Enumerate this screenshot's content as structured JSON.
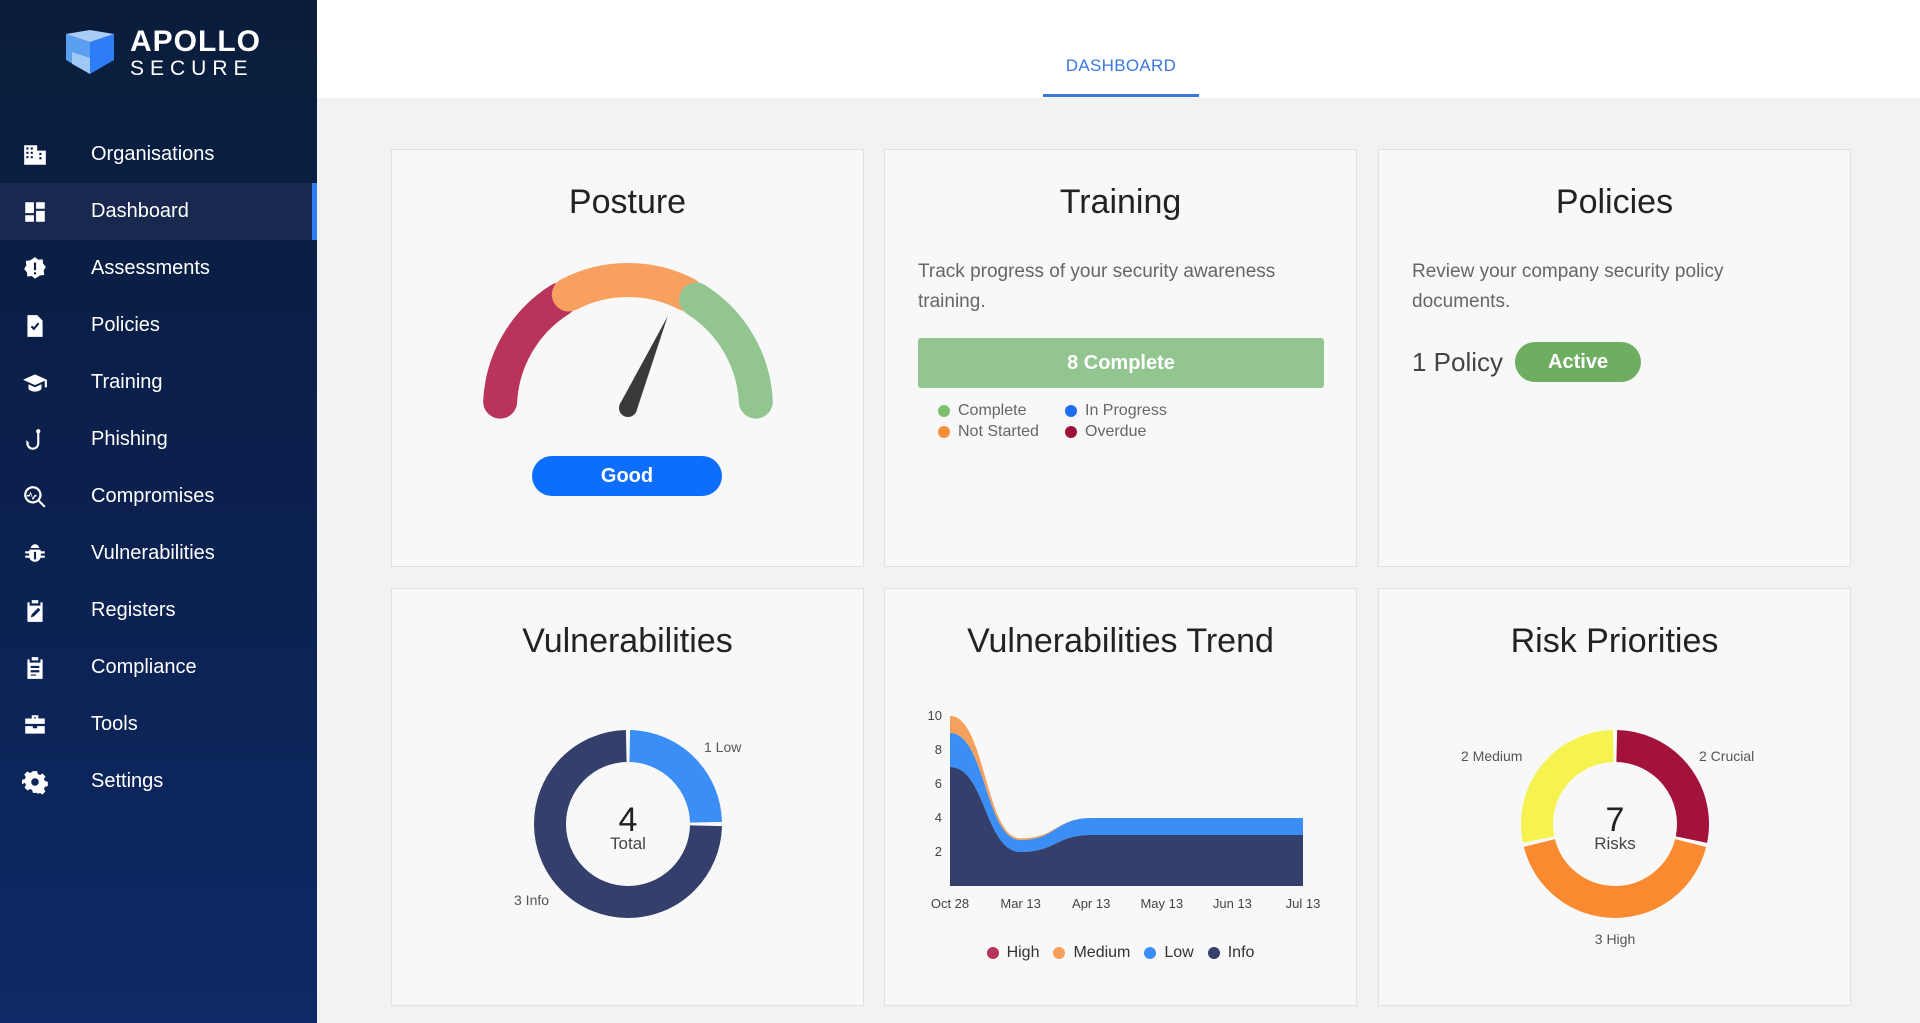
{
  "brand": {
    "line1": "APOLLO",
    "line2": "SECURE"
  },
  "sidebar": {
    "items": [
      {
        "label": "Organisations",
        "icon": "building-icon"
      },
      {
        "label": "Dashboard",
        "icon": "dashboard-icon",
        "active": true
      },
      {
        "label": "Assessments",
        "icon": "alert-badge-icon"
      },
      {
        "label": "Policies",
        "icon": "file-check-icon"
      },
      {
        "label": "Training",
        "icon": "graduation-cap-icon"
      },
      {
        "label": "Phishing",
        "icon": "fish-hook-icon"
      },
      {
        "label": "Compromises",
        "icon": "magnify-pulse-icon"
      },
      {
        "label": "Vulnerabilities",
        "icon": "bug-icon"
      },
      {
        "label": "Registers",
        "icon": "clipboard-edit-icon"
      },
      {
        "label": "Compliance",
        "icon": "clipboard-list-icon"
      },
      {
        "label": "Tools",
        "icon": "toolbox-icon"
      },
      {
        "label": "Settings",
        "icon": "gear-icon"
      }
    ]
  },
  "header": {
    "tab": "DASHBOARD"
  },
  "posture": {
    "title": "Posture",
    "status": "Good"
  },
  "training": {
    "title": "Training",
    "description": "Track progress of your security awareness training.",
    "progress_label": "8 Complete",
    "legend": [
      {
        "label": "Complete",
        "color": "#7cbf6d"
      },
      {
        "label": "In Progress",
        "color": "#1e6ff0"
      },
      {
        "label": "Not Started",
        "color": "#f5903a"
      },
      {
        "label": "Overdue",
        "color": "#9c1238"
      }
    ]
  },
  "policies": {
    "title": "Policies",
    "description": "Review your company security policy documents.",
    "count_label": "1 Policy",
    "status": "Active"
  },
  "vulnerabilities": {
    "title": "Vulnerabilities",
    "total_value": "4",
    "total_label": "Total",
    "low_label": "1 Low",
    "info_label": "3 Info"
  },
  "vuln_trend": {
    "title": "Vulnerabilities Trend"
  },
  "risk": {
    "title": "Risk Priorities",
    "total_value": "7",
    "total_label": "Risks",
    "crucial_label": "2 Crucial",
    "high_label": "3 High",
    "medium_label": "2 Medium"
  },
  "chart_data": [
    {
      "type": "gauge",
      "segments": [
        {
          "name": "poor",
          "color": "#b8345a"
        },
        {
          "name": "fair",
          "color": "#f8a060"
        },
        {
          "name": "good",
          "color": "#93c590"
        }
      ],
      "needle_value": 0.63,
      "label": "Good"
    },
    {
      "type": "pie",
      "title": "Vulnerabilities",
      "categories": [
        "Low",
        "Info"
      ],
      "values": [
        1,
        3
      ],
      "colors": [
        "#3a8ef5",
        "#34406b"
      ]
    },
    {
      "type": "area",
      "title": "Vulnerabilities Trend",
      "x": [
        "Oct 28",
        "Mar 13",
        "Apr 13",
        "May 13",
        "Jun 13",
        "Jul 13"
      ],
      "ylim": [
        0,
        10
      ],
      "yticks": [
        2,
        4,
        6,
        8,
        10
      ],
      "stacked": true,
      "series": [
        {
          "name": "Info",
          "color": "#34406b",
          "values": [
            7,
            2,
            3,
            3,
            3,
            3
          ]
        },
        {
          "name": "Low",
          "color": "#3a8ef5",
          "values": [
            2,
            0.7,
            1,
            1,
            1,
            1
          ]
        },
        {
          "name": "Medium",
          "color": "#f5a05c",
          "values": [
            1,
            0.1,
            0,
            0,
            0,
            0
          ]
        },
        {
          "name": "High",
          "color": "#b8345a",
          "values": [
            0,
            0,
            0,
            0,
            0,
            0
          ]
        }
      ],
      "legend": [
        "High",
        "Medium",
        "Low",
        "Info"
      ],
      "legend_colors": [
        "#b8345a",
        "#f5a05c",
        "#3a8ef5",
        "#34406b"
      ]
    },
    {
      "type": "pie",
      "title": "Risk Priorities",
      "categories": [
        "Crucial",
        "High",
        "Medium"
      ],
      "values": [
        2,
        3,
        2
      ],
      "colors": [
        "#a3123a",
        "#f98a30",
        "#f6f24f"
      ]
    }
  ]
}
